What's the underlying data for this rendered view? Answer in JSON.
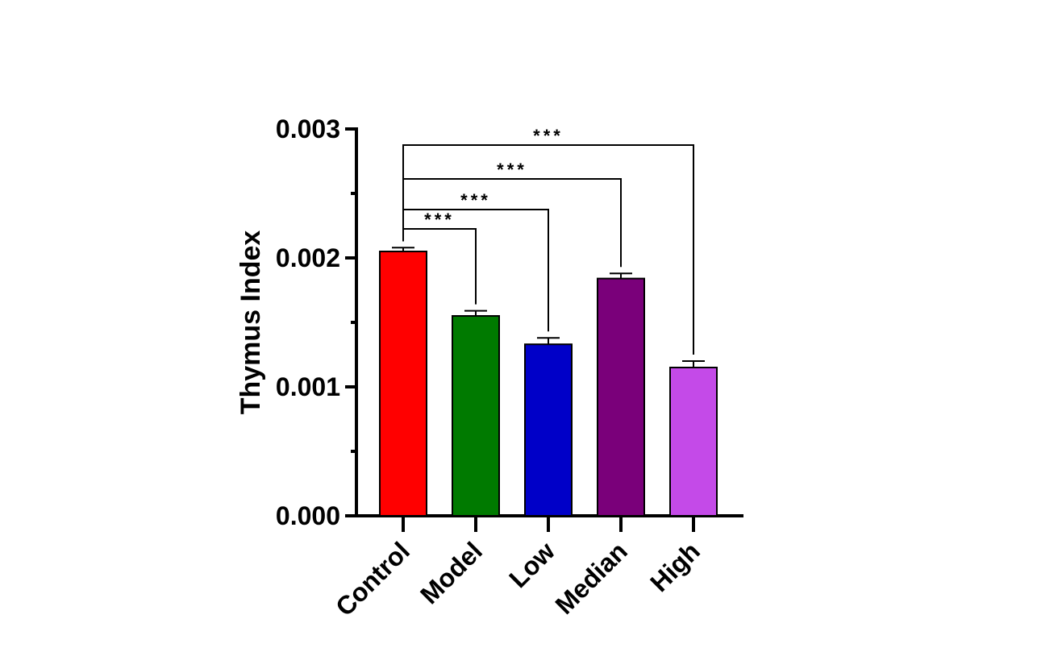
{
  "chart_data": {
    "type": "bar",
    "title": "",
    "xlabel": "",
    "ylabel": "Thymus Index",
    "ylim": [
      0,
      0.003
    ],
    "yticks": [
      "0.000",
      "0.001",
      "0.002",
      "0.003"
    ],
    "grid": false,
    "categories": [
      "Control",
      "Model",
      "Low",
      "Median",
      "High"
    ],
    "values": [
      0.00205,
      0.00155,
      0.00133,
      0.00184,
      0.00115
    ],
    "errors": [
      3e-05,
      4e-05,
      5e-05,
      4e-05,
      5e-05
    ],
    "colors": [
      "#ff0000",
      "#007a00",
      "#0000c8",
      "#7a007a",
      "#c44ae8"
    ],
    "comparisons": [
      {
        "from": "Control",
        "to": "Model",
        "label": "***"
      },
      {
        "from": "Control",
        "to": "Low",
        "label": "***"
      },
      {
        "from": "Control",
        "to": "Median",
        "label": "***"
      },
      {
        "from": "Control",
        "to": "High",
        "label": "***"
      }
    ]
  }
}
